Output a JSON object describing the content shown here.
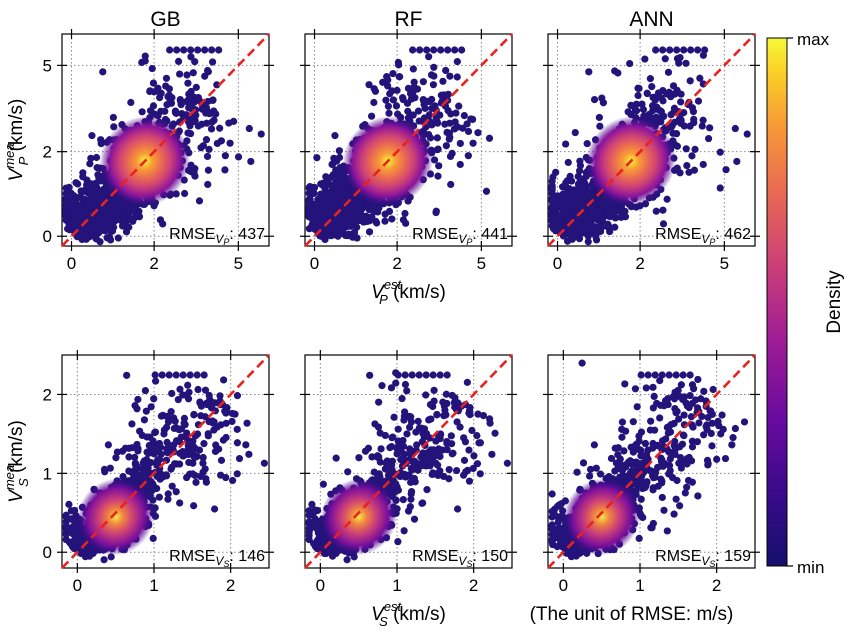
{
  "chart_data": {
    "type": "scatter",
    "subtype": "density-colored scatter (hexbin-like)",
    "column_titles": [
      "GB",
      "RF",
      "ANN"
    ],
    "rows": [
      {
        "variable": "Vp",
        "ylabel": {
          "main": "V",
          "sub": "P",
          "sup": "mea",
          "unit": "(km/s)"
        },
        "xlabel": {
          "main": "V",
          "sub": "P",
          "sup": "est",
          "unit": "(km/s)"
        },
        "ticks": [
          {
            "value": 0,
            "label": "0"
          },
          {
            "value": 2,
            "label": "2"
          },
          {
            "value": 5,
            "label": "5"
          }
        ],
        "panels": [
          {
            "model": "GB",
            "rmse_prefix": "RMSE",
            "rmse_sub": "V",
            "rmse_subsub": "P",
            "rmse_value": "437"
          },
          {
            "model": "RF",
            "rmse_prefix": "RMSE",
            "rmse_sub": "V",
            "rmse_subsub": "P",
            "rmse_value": "441"
          },
          {
            "model": "ANN",
            "rmse_prefix": "RMSE",
            "rmse_sub": "V",
            "rmse_subsub": "P",
            "rmse_value": "462"
          }
        ]
      },
      {
        "variable": "Vs",
        "ylabel": {
          "main": "V",
          "sub": "S",
          "sup": "mea",
          "unit": "(km/s)"
        },
        "xlabel": {
          "main": "V",
          "sub": "S",
          "sup": "est",
          "unit": "(km/s)"
        },
        "ticks": [
          {
            "value": 0,
            "label": "0"
          },
          {
            "value": 1,
            "label": "1"
          },
          {
            "value": 2,
            "label": "2"
          }
        ],
        "axis_range": [
          -0.2,
          2.5
        ],
        "panels": [
          {
            "model": "GB",
            "rmse_prefix": "RMSE",
            "rmse_sub": "V",
            "rmse_subsub": "S",
            "rmse_value": "146"
          },
          {
            "model": "RF",
            "rmse_prefix": "RMSE",
            "rmse_sub": "V",
            "rmse_subsub": "S",
            "rmse_value": "150"
          },
          {
            "model": "ANN",
            "rmse_prefix": "RMSE",
            "rmse_sub": "V",
            "rmse_subsub": "S",
            "rmse_value": "159"
          }
        ]
      }
    ],
    "reference_line": {
      "label": "1:1 line",
      "style": "dashed",
      "color": "#e8231f"
    },
    "unit_note": "(The unit of RMSE: m/s)",
    "colorbar": {
      "label": "Density",
      "max_label": "max",
      "min_label": "min"
    },
    "colormap": [
      "#150f6c",
      "#3a0a8c",
      "#6a0aa0",
      "#a01c96",
      "#cc3f78",
      "#ea6a52",
      "#f89c35",
      "#fbd227",
      "#f6f93a"
    ],
    "point_color": "#24137a"
  }
}
